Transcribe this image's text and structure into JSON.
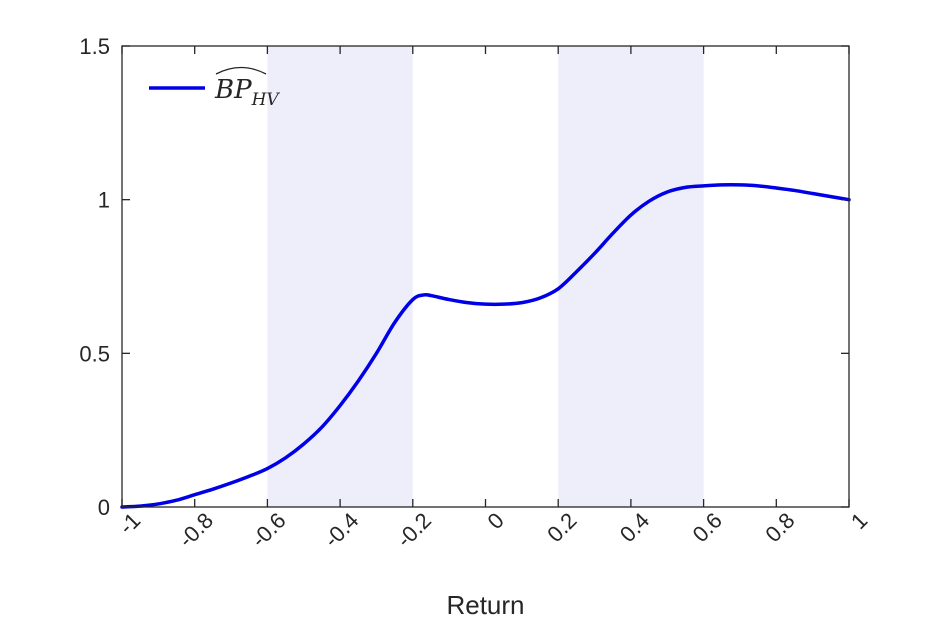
{
  "chart_data": {
    "type": "line",
    "xlabel": "Return",
    "ylabel": "",
    "xlim": [
      -1,
      1
    ],
    "ylim": [
      0,
      1.5
    ],
    "xticks": [
      -1,
      -0.8,
      -0.6,
      -0.4,
      -0.2,
      0,
      0.2,
      0.4,
      0.6,
      0.8,
      1
    ],
    "xtick_labels": [
      "-1",
      "-0.8",
      "-0.6",
      "-0.4",
      "-0.2",
      "0",
      "0.2",
      "0.4",
      "0.6",
      "0.8",
      "1"
    ],
    "yticks": [
      0,
      0.5,
      1,
      1.5
    ],
    "ytick_labels": [
      "0",
      "0.5",
      "1",
      "1.5"
    ],
    "grid": false,
    "legend_position": "top-left",
    "shaded_regions": [
      {
        "x0": -0.6,
        "x1": -0.2,
        "color": "#eeeefb"
      },
      {
        "x0": 0.2,
        "x1": 0.6,
        "color": "#eeeefb"
      }
    ],
    "series": [
      {
        "name": "BP_HV",
        "legend": {
          "base": "BP",
          "subscript": "HV"
        },
        "color": "#0000e6",
        "x": [
          -1,
          -0.95,
          -0.9,
          -0.85,
          -0.8,
          -0.75,
          -0.7,
          -0.65,
          -0.6,
          -0.55,
          -0.5,
          -0.45,
          -0.4,
          -0.35,
          -0.3,
          -0.25,
          -0.2,
          -0.17,
          -0.15,
          -0.1,
          -0.05,
          0,
          0.05,
          0.1,
          0.15,
          0.2,
          0.25,
          0.3,
          0.35,
          0.4,
          0.45,
          0.5,
          0.55,
          0.6,
          0.65,
          0.7,
          0.75,
          0.8,
          0.85,
          0.9,
          0.95,
          1
        ],
        "y": [
          0,
          0.003,
          0.01,
          0.022,
          0.04,
          0.058,
          0.078,
          0.1,
          0.125,
          0.16,
          0.205,
          0.26,
          0.33,
          0.41,
          0.5,
          0.6,
          0.675,
          0.69,
          0.688,
          0.675,
          0.665,
          0.66,
          0.66,
          0.665,
          0.68,
          0.71,
          0.765,
          0.825,
          0.89,
          0.95,
          0.995,
          1.025,
          1.04,
          1.045,
          1.048,
          1.048,
          1.045,
          1.038,
          1.03,
          1.02,
          1.01,
          1.0
        ]
      }
    ]
  }
}
